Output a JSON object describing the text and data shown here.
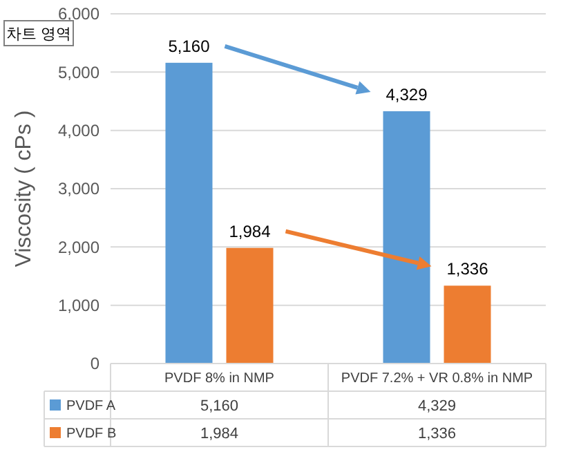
{
  "chart_data": {
    "type": "bar",
    "ylabel": "Viscosity ( cPs )",
    "categories": [
      "PVDF 8% in NMP",
      "PVDF 7.2% + VR 0.8% in NMP"
    ],
    "series": [
      {
        "name": "PVDF A",
        "color": "#5b9bd5",
        "values": [
          5160,
          4329
        ],
        "value_labels": [
          "5,160",
          "4,329"
        ]
      },
      {
        "name": "PVDF B",
        "color": "#ed7d31",
        "values": [
          1984,
          1336
        ],
        "value_labels": [
          "1,984",
          "1,336"
        ]
      }
    ],
    "ylim": [
      0,
      6000
    ],
    "yticks": [
      {
        "value": 0,
        "label": "0"
      },
      {
        "value": 1000,
        "label": "1,000"
      },
      {
        "value": 2000,
        "label": "2,000"
      },
      {
        "value": 3000,
        "label": "3,000"
      },
      {
        "value": 4000,
        "label": "4,000"
      },
      {
        "value": 5000,
        "label": "5,000"
      },
      {
        "value": 6000,
        "label": "6,000"
      }
    ],
    "grid": "y",
    "legend": "bottom",
    "annotations": [
      "차트 영역"
    ]
  }
}
